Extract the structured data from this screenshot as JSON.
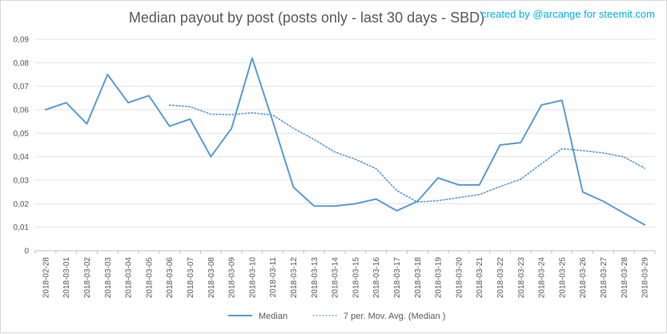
{
  "chart_data": {
    "type": "line",
    "title": "Median payout by post (posts only - last 30 days - SBD)",
    "credit": "created by @arcange for steemit.com",
    "xlabel": "",
    "ylabel": "",
    "ylim": [
      0,
      0.09
    ],
    "yticks": [
      "0",
      "0,01",
      "0,02",
      "0,03",
      "0,04",
      "0,05",
      "0,06",
      "0,07",
      "0,08",
      "0,09"
    ],
    "grid": true,
    "legend": "bottom",
    "categories": [
      "2018-02-28",
      "2018-03-01",
      "2018-03-02",
      "2018-03-03",
      "2018-03-04",
      "2018-03-05",
      "2018-03-06",
      "2018-03-07",
      "2018-03-08",
      "2018-03-09",
      "2018-03-10",
      "2018-03-11",
      "2018-03-12",
      "2018-03-13",
      "2018-03-14",
      "2018-03-15",
      "2018-03-16",
      "2018-03-17",
      "2018-03-18",
      "2018-03-19",
      "2018-03-20",
      "2018-03-21",
      "2018-03-22",
      "2018-03-23",
      "2018-03-24",
      "2018-03-25",
      "2018-03-26",
      "2018-03-27",
      "2018-03-28",
      "2018-03-29"
    ],
    "series": [
      {
        "name": "Median",
        "style": "solid",
        "color": "#5b9bd5",
        "values": [
          0.06,
          0.063,
          0.054,
          0.075,
          0.063,
          0.066,
          0.053,
          0.056,
          0.04,
          0.052,
          0.082,
          0.055,
          0.027,
          0.019,
          0.019,
          0.02,
          0.022,
          0.017,
          0.021,
          0.031,
          0.028,
          0.028,
          0.045,
          0.046,
          0.062,
          0.064,
          0.025,
          0.021,
          0.016,
          0.011
        ]
      },
      {
        "name": "7 per. Mov. Avg. (Median )",
        "style": "dotted",
        "color": "#5b9bd5",
        "values": [
          null,
          null,
          null,
          null,
          null,
          null,
          0.062,
          0.0613,
          0.0581,
          0.0579,
          0.0587,
          0.0577,
          0.0521,
          0.0473,
          0.042,
          0.0389,
          0.0349,
          0.0256,
          0.0207,
          0.0213,
          0.0226,
          0.0239,
          0.0273,
          0.0304,
          0.037,
          0.0434,
          0.0426,
          0.0416,
          0.0399,
          0.0351
        ]
      }
    ]
  }
}
